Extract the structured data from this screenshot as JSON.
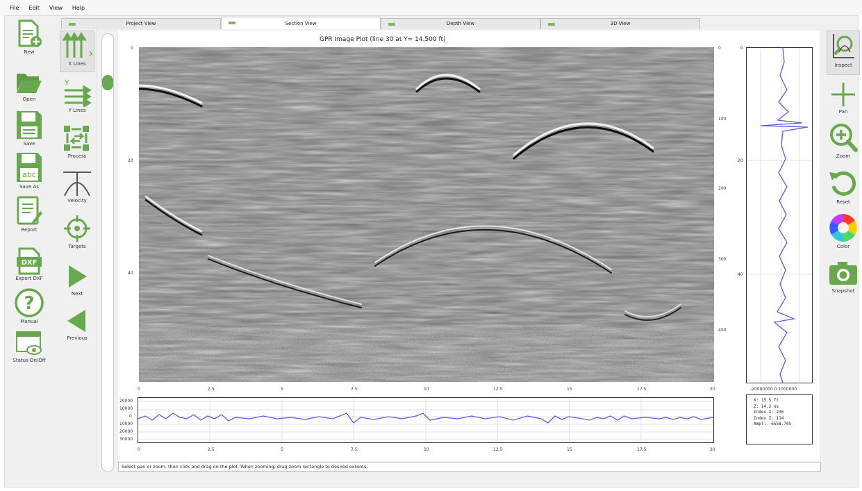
{
  "menu": [
    "File",
    "Edit",
    "View",
    "Help"
  ],
  "left_tools": [
    {
      "label": "New",
      "icon": "new-file-icon"
    },
    {
      "label": "Open",
      "icon": "folder-open-icon"
    },
    {
      "label": "Save",
      "icon": "floppy-disk-icon"
    },
    {
      "label": "Save As",
      "icon": "save-as-icon"
    },
    {
      "label": "Report",
      "icon": "report-icon"
    },
    {
      "label": "Export DXF",
      "icon": "dxf-icon"
    },
    {
      "label": "Manual",
      "icon": "help-icon"
    },
    {
      "label": "Status On/Off",
      "icon": "status-window-icon"
    }
  ],
  "mid_tools": [
    {
      "label": "X Lines",
      "icon": "x-lines-icon",
      "selected": true
    },
    {
      "label": "Y Lines",
      "icon": "y-lines-icon"
    },
    {
      "label": "Process",
      "icon": "process-icon"
    },
    {
      "label": "Velocity",
      "icon": "velocity-icon"
    },
    {
      "label": "Targets",
      "icon": "crosshair-icon"
    },
    {
      "label": "Next",
      "icon": "next-arrow-icon"
    },
    {
      "label": "Previous",
      "icon": "previous-arrow-icon"
    }
  ],
  "right_tools": [
    {
      "label": "Inspect",
      "icon": "inspect-icon",
      "selected": true
    },
    {
      "label": "Pan",
      "icon": "pan-icon"
    },
    {
      "label": "Zoom",
      "icon": "zoom-icon"
    },
    {
      "label": "Reset",
      "icon": "reset-icon"
    },
    {
      "label": "Color",
      "icon": "color-wheel-icon"
    },
    {
      "label": "Snapshot",
      "icon": "camera-icon"
    }
  ],
  "tabs": [
    {
      "label": "Project View",
      "active": false
    },
    {
      "label": "Section View",
      "active": true
    },
    {
      "label": "Depth View",
      "active": false
    },
    {
      "label": "3D View",
      "active": false
    }
  ],
  "plot": {
    "title": "GPR Image Plot (line 30 at Y= 14.500 ft)",
    "x_ticks": [
      "0",
      "2.5",
      "5",
      "7.5",
      "10",
      "12.5",
      "15",
      "17.5",
      "20"
    ],
    "y_ticks_left": [
      "0",
      "20",
      "40"
    ],
    "y_ticks_right": [
      "0",
      "100",
      "200",
      "300",
      "400"
    ],
    "trace_y_ticks": [
      "20000",
      "10000",
      "0",
      "10000",
      "20000",
      "30000"
    ],
    "side_y_ticks": [
      "0",
      "20",
      "40"
    ],
    "side_x_ticks": "-20000000 0 1000000"
  },
  "info": {
    "line1": "X: 15.5   ft",
    "line2": "Z: 14.2   ns",
    "line3": "Index X: 236",
    "line4": "Index Z: 114",
    "line5": "Ampl: -6558.705"
  },
  "colors": {
    "accent_green": "#6aa84f",
    "trace_blue": "#5a5ae6"
  },
  "status_text": "Select pan or zoom, then click and drag on the plot.  When zooming, drag zoom rectangle to desired extents."
}
